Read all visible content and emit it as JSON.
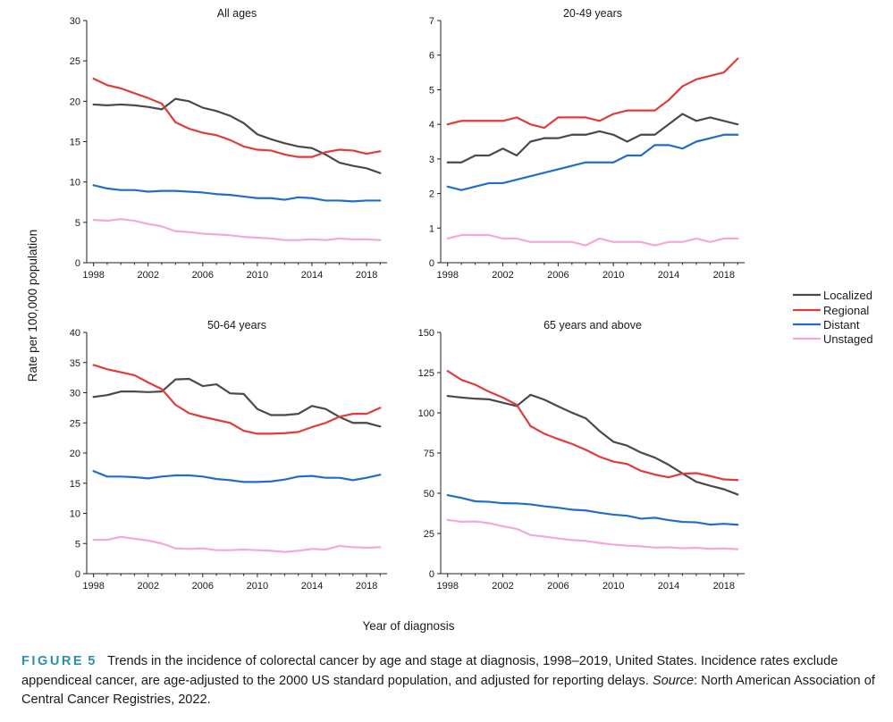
{
  "figure": {
    "shared_ylabel": "Rate per 100,000 population",
    "shared_xlabel": "Year of diagnosis",
    "legend": [
      {
        "name": "Localized",
        "color": "#4a4a4a"
      },
      {
        "name": "Regional",
        "color": "#e03c3c"
      },
      {
        "name": "Distant",
        "color": "#1f6fc8"
      },
      {
        "name": "Unstaged",
        "color": "#f5a8d8"
      }
    ]
  },
  "caption": {
    "label": "FIGURE",
    "number": "5",
    "text": "Trends in the incidence of colorectal cancer by age and stage at diagnosis, 1998–2019, United States. Incidence rates exclude appendiceal cancer, are age-adjusted to the 2000 US standard population, and adjusted for reporting delays.",
    "source_label": "Source",
    "source_text": ": North American Association of Central Cancer Registries, 2022."
  },
  "chart_data": [
    {
      "type": "line",
      "title": "All ages",
      "xlabel": "Year of diagnosis",
      "ylabel": "Rate per 100,000 population",
      "xlim": [
        1997.5,
        2019.5
      ],
      "ylim": [
        0,
        30
      ],
      "yticks": [
        0,
        5,
        10,
        15,
        20,
        25,
        30
      ],
      "xticks": [
        1998,
        2002,
        2006,
        2010,
        2014,
        2018
      ],
      "x": [
        1998,
        1999,
        2000,
        2001,
        2002,
        2003,
        2004,
        2005,
        2006,
        2007,
        2008,
        2009,
        2010,
        2011,
        2012,
        2013,
        2014,
        2015,
        2016,
        2017,
        2018,
        2019
      ],
      "series": [
        {
          "name": "Localized",
          "values": [
            19.6,
            19.5,
            19.6,
            19.5,
            19.3,
            19.0,
            20.3,
            20.0,
            19.2,
            18.8,
            18.2,
            17.3,
            15.9,
            15.3,
            14.8,
            14.4,
            14.2,
            13.4,
            12.4,
            12.0,
            11.7,
            11.1
          ]
        },
        {
          "name": "Regional",
          "values": [
            22.8,
            22.0,
            21.6,
            21.0,
            20.4,
            19.7,
            17.4,
            16.6,
            16.1,
            15.8,
            15.2,
            14.4,
            14.0,
            13.9,
            13.4,
            13.1,
            13.1,
            13.7,
            14.0,
            13.9,
            13.5,
            13.8
          ]
        },
        {
          "name": "Distant",
          "values": [
            9.6,
            9.2,
            9.0,
            9.0,
            8.8,
            8.9,
            8.9,
            8.8,
            8.7,
            8.5,
            8.4,
            8.2,
            8.0,
            8.0,
            7.8,
            8.1,
            8.0,
            7.7,
            7.7,
            7.6,
            7.7,
            7.7
          ]
        },
        {
          "name": "Unstaged",
          "values": [
            5.3,
            5.2,
            5.4,
            5.2,
            4.8,
            4.5,
            3.9,
            3.8,
            3.6,
            3.5,
            3.4,
            3.2,
            3.1,
            3.0,
            2.8,
            2.8,
            2.9,
            2.8,
            3.0,
            2.9,
            2.9,
            2.8
          ]
        }
      ]
    },
    {
      "type": "line",
      "title": "20-49 years",
      "xlabel": "Year of diagnosis",
      "ylabel": "Rate per 100,000 population",
      "xlim": [
        1997.5,
        2019.5
      ],
      "ylim": [
        0,
        7
      ],
      "yticks": [
        0,
        1,
        2,
        3,
        4,
        5,
        6,
        7
      ],
      "xticks": [
        1998,
        2002,
        2006,
        2010,
        2014,
        2018
      ],
      "x": [
        1998,
        1999,
        2000,
        2001,
        2002,
        2003,
        2004,
        2005,
        2006,
        2007,
        2008,
        2009,
        2010,
        2011,
        2012,
        2013,
        2014,
        2015,
        2016,
        2017,
        2018,
        2019
      ],
      "series": [
        {
          "name": "Localized",
          "values": [
            2.9,
            2.9,
            3.1,
            3.1,
            3.3,
            3.1,
            3.5,
            3.6,
            3.6,
            3.7,
            3.7,
            3.8,
            3.7,
            3.5,
            3.7,
            3.7,
            4.0,
            4.3,
            4.1,
            4.2,
            4.1,
            4.0
          ]
        },
        {
          "name": "Regional",
          "values": [
            4.0,
            4.1,
            4.1,
            4.1,
            4.1,
            4.2,
            4.0,
            3.9,
            4.2,
            4.2,
            4.2,
            4.1,
            4.3,
            4.4,
            4.4,
            4.4,
            4.7,
            5.1,
            5.3,
            5.4,
            5.5,
            5.9
          ]
        },
        {
          "name": "Distant",
          "values": [
            2.2,
            2.1,
            2.2,
            2.3,
            2.3,
            2.4,
            2.5,
            2.6,
            2.7,
            2.8,
            2.9,
            2.9,
            2.9,
            3.1,
            3.1,
            3.4,
            3.4,
            3.3,
            3.5,
            3.6,
            3.7,
            3.7
          ]
        },
        {
          "name": "Unstaged",
          "values": [
            0.7,
            0.8,
            0.8,
            0.8,
            0.7,
            0.7,
            0.6,
            0.6,
            0.6,
            0.6,
            0.5,
            0.7,
            0.6,
            0.6,
            0.6,
            0.5,
            0.6,
            0.6,
            0.7,
            0.6,
            0.7,
            0.7
          ]
        }
      ]
    },
    {
      "type": "line",
      "title": "50-64 years",
      "xlabel": "Year of diagnosis",
      "ylabel": "Rate per 100,000 population",
      "xlim": [
        1997.5,
        2019.5
      ],
      "ylim": [
        0,
        40
      ],
      "yticks": [
        0,
        5,
        10,
        15,
        20,
        25,
        30,
        35,
        40
      ],
      "xticks": [
        1998,
        2002,
        2006,
        2010,
        2014,
        2018
      ],
      "x": [
        1998,
        1999,
        2000,
        2001,
        2002,
        2003,
        2004,
        2005,
        2006,
        2007,
        2008,
        2009,
        2010,
        2011,
        2012,
        2013,
        2014,
        2015,
        2016,
        2017,
        2018,
        2019
      ],
      "series": [
        {
          "name": "Localized",
          "values": [
            29.3,
            29.6,
            30.2,
            30.2,
            30.1,
            30.2,
            32.2,
            32.3,
            31.1,
            31.4,
            29.9,
            29.8,
            27.3,
            26.3,
            26.3,
            26.5,
            27.8,
            27.3,
            26.0,
            25.0,
            25.0,
            24.4
          ]
        },
        {
          "name": "Regional",
          "values": [
            34.6,
            33.9,
            33.4,
            32.9,
            31.7,
            30.6,
            28.0,
            26.6,
            26.0,
            25.5,
            25.0,
            23.7,
            23.2,
            23.2,
            23.3,
            23.5,
            24.3,
            25.0,
            26.0,
            26.5,
            26.5,
            27.5
          ]
        },
        {
          "name": "Distant",
          "values": [
            17.0,
            16.1,
            16.1,
            16.0,
            15.8,
            16.1,
            16.3,
            16.3,
            16.1,
            15.7,
            15.5,
            15.2,
            15.2,
            15.3,
            15.6,
            16.1,
            16.2,
            15.9,
            15.9,
            15.5,
            15.9,
            16.4
          ]
        },
        {
          "name": "Unstaged",
          "values": [
            5.6,
            5.6,
            6.1,
            5.8,
            5.5,
            5.0,
            4.2,
            4.1,
            4.2,
            3.9,
            3.9,
            4.0,
            3.9,
            3.8,
            3.6,
            3.8,
            4.1,
            4.0,
            4.6,
            4.4,
            4.3,
            4.4
          ]
        }
      ]
    },
    {
      "type": "line",
      "title": "65 years and above",
      "xlabel": "Year of diagnosis",
      "ylabel": "Rate per 100,000 population",
      "xlim": [
        1997.5,
        2019.5
      ],
      "ylim": [
        0,
        150
      ],
      "yticks": [
        0,
        25,
        50,
        75,
        100,
        125,
        150
      ],
      "xticks": [
        1998,
        2002,
        2006,
        2010,
        2014,
        2018
      ],
      "x": [
        1998,
        1999,
        2000,
        2001,
        2002,
        2003,
        2004,
        2005,
        2006,
        2007,
        2008,
        2009,
        2010,
        2011,
        2012,
        2013,
        2014,
        2015,
        2016,
        2017,
        2018,
        2019
      ],
      "series": [
        {
          "name": "Localized",
          "values": [
            110.5,
            109.5,
            108.8,
            108.4,
            106.3,
            104.2,
            111.2,
            108.2,
            104.0,
            100.1,
            96.6,
            88.7,
            82.0,
            79.6,
            75.3,
            72.2,
            67.7,
            62.3,
            57.1,
            54.7,
            52.5,
            49.2
          ]
        },
        {
          "name": "Regional",
          "values": [
            126.0,
            120.5,
            117.5,
            113.1,
            109.5,
            105.0,
            91.8,
            87.0,
            83.7,
            80.7,
            77.0,
            72.7,
            69.7,
            68.2,
            63.9,
            61.6,
            59.9,
            62.2,
            62.5,
            60.7,
            58.6,
            58.2
          ]
        },
        {
          "name": "Distant",
          "values": [
            48.8,
            47.1,
            45.0,
            44.7,
            43.8,
            43.7,
            43.1,
            41.9,
            41.0,
            39.8,
            39.3,
            37.9,
            36.7,
            36.0,
            34.2,
            34.8,
            33.3,
            32.2,
            31.9,
            30.5,
            31.0,
            30.4
          ]
        },
        {
          "name": "Unstaged",
          "values": [
            33.4,
            32.3,
            32.5,
            31.4,
            29.5,
            27.9,
            24.0,
            23.1,
            21.9,
            20.9,
            20.4,
            19.1,
            18.1,
            17.4,
            17.0,
            16.2,
            16.4,
            15.8,
            16.1,
            15.5,
            15.7,
            15.2
          ]
        }
      ]
    }
  ]
}
